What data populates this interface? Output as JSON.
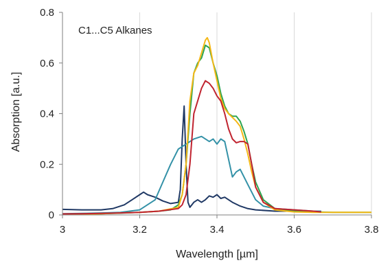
{
  "chart_data": {
    "type": "line",
    "title": "",
    "xlabel": "Wavelength [µm]",
    "ylabel": "Absorption [a.u.]",
    "xlim": [
      3.0,
      3.8
    ],
    "ylim": [
      0,
      0.8
    ],
    "xticks": [
      3.0,
      3.2,
      3.4,
      3.6,
      3.8
    ],
    "xtick_labels": [
      "3",
      "3.2",
      "3.4",
      "3.6",
      "3.8"
    ],
    "yticks": [
      0,
      0.2,
      0.4,
      0.6,
      0.8
    ],
    "ytick_labels": [
      "0",
      "0.2",
      "0.4",
      "0.6",
      "0.8"
    ],
    "grid": "vertical",
    "legend": "none",
    "annotation": "C1...C5 Alkanes",
    "series": [
      {
        "color": "#1f3864",
        "points": [
          [
            3.0,
            0.022
          ],
          [
            3.05,
            0.02
          ],
          [
            3.1,
            0.02
          ],
          [
            3.13,
            0.025
          ],
          [
            3.16,
            0.04
          ],
          [
            3.18,
            0.06
          ],
          [
            3.2,
            0.08
          ],
          [
            3.21,
            0.09
          ],
          [
            3.22,
            0.08
          ],
          [
            3.24,
            0.07
          ],
          [
            3.26,
            0.055
          ],
          [
            3.28,
            0.045
          ],
          [
            3.3,
            0.05
          ],
          [
            3.305,
            0.1
          ],
          [
            3.31,
            0.3
          ],
          [
            3.315,
            0.43
          ],
          [
            3.32,
            0.2
          ],
          [
            3.325,
            0.05
          ],
          [
            3.33,
            0.03
          ],
          [
            3.34,
            0.05
          ],
          [
            3.35,
            0.06
          ],
          [
            3.36,
            0.05
          ],
          [
            3.37,
            0.06
          ],
          [
            3.38,
            0.075
          ],
          [
            3.39,
            0.07
          ],
          [
            3.4,
            0.08
          ],
          [
            3.41,
            0.065
          ],
          [
            3.42,
            0.07
          ],
          [
            3.44,
            0.05
          ],
          [
            3.46,
            0.035
          ],
          [
            3.48,
            0.025
          ],
          [
            3.5,
            0.02
          ],
          [
            3.55,
            0.015
          ],
          [
            3.6,
            0.015
          ],
          [
            3.65,
            0.012
          ],
          [
            3.67,
            0.012
          ]
        ]
      },
      {
        "color": "#3391a7",
        "points": [
          [
            3.0,
            0.005
          ],
          [
            3.05,
            0.006
          ],
          [
            3.1,
            0.008
          ],
          [
            3.15,
            0.01
          ],
          [
            3.2,
            0.02
          ],
          [
            3.24,
            0.06
          ],
          [
            3.26,
            0.13
          ],
          [
            3.28,
            0.2
          ],
          [
            3.3,
            0.26
          ],
          [
            3.32,
            0.28
          ],
          [
            3.34,
            0.3
          ],
          [
            3.36,
            0.31
          ],
          [
            3.38,
            0.29
          ],
          [
            3.39,
            0.3
          ],
          [
            3.4,
            0.28
          ],
          [
            3.41,
            0.3
          ],
          [
            3.42,
            0.29
          ],
          [
            3.43,
            0.22
          ],
          [
            3.44,
            0.15
          ],
          [
            3.45,
            0.17
          ],
          [
            3.46,
            0.18
          ],
          [
            3.47,
            0.15
          ],
          [
            3.48,
            0.12
          ],
          [
            3.5,
            0.06
          ],
          [
            3.52,
            0.035
          ],
          [
            3.55,
            0.025
          ],
          [
            3.6,
            0.02
          ],
          [
            3.65,
            0.015
          ],
          [
            3.67,
            0.015
          ]
        ]
      },
      {
        "color": "#2ca450",
        "points": [
          [
            3.0,
            0.003
          ],
          [
            3.05,
            0.004
          ],
          [
            3.1,
            0.005
          ],
          [
            3.15,
            0.007
          ],
          [
            3.2,
            0.01
          ],
          [
            3.25,
            0.015
          ],
          [
            3.28,
            0.02
          ],
          [
            3.3,
            0.04
          ],
          [
            3.31,
            0.08
          ],
          [
            3.32,
            0.2
          ],
          [
            3.33,
            0.4
          ],
          [
            3.34,
            0.56
          ],
          [
            3.35,
            0.6
          ],
          [
            3.36,
            0.62
          ],
          [
            3.37,
            0.67
          ],
          [
            3.38,
            0.66
          ],
          [
            3.39,
            0.6
          ],
          [
            3.4,
            0.55
          ],
          [
            3.41,
            0.48
          ],
          [
            3.42,
            0.43
          ],
          [
            3.43,
            0.4
          ],
          [
            3.44,
            0.39
          ],
          [
            3.45,
            0.39
          ],
          [
            3.46,
            0.37
          ],
          [
            3.47,
            0.33
          ],
          [
            3.48,
            0.28
          ],
          [
            3.49,
            0.2
          ],
          [
            3.5,
            0.13
          ],
          [
            3.52,
            0.06
          ],
          [
            3.55,
            0.025
          ],
          [
            3.6,
            0.015
          ],
          [
            3.65,
            0.012
          ],
          [
            3.7,
            0.01
          ],
          [
            3.8,
            0.01
          ]
        ]
      },
      {
        "color": "#f5b817",
        "points": [
          [
            3.0,
            0.002
          ],
          [
            3.05,
            0.003
          ],
          [
            3.1,
            0.005
          ],
          [
            3.15,
            0.008
          ],
          [
            3.2,
            0.01
          ],
          [
            3.25,
            0.015
          ],
          [
            3.3,
            0.03
          ],
          [
            3.31,
            0.08
          ],
          [
            3.32,
            0.2
          ],
          [
            3.33,
            0.45
          ],
          [
            3.34,
            0.56
          ],
          [
            3.35,
            0.59
          ],
          [
            3.36,
            0.64
          ],
          [
            3.37,
            0.69
          ],
          [
            3.375,
            0.7
          ],
          [
            3.38,
            0.68
          ],
          [
            3.39,
            0.6
          ],
          [
            3.4,
            0.53
          ],
          [
            3.41,
            0.46
          ],
          [
            3.42,
            0.42
          ],
          [
            3.43,
            0.4
          ],
          [
            3.44,
            0.385
          ],
          [
            3.45,
            0.37
          ],
          [
            3.46,
            0.35
          ],
          [
            3.47,
            0.3
          ],
          [
            3.48,
            0.24
          ],
          [
            3.49,
            0.17
          ],
          [
            3.5,
            0.11
          ],
          [
            3.52,
            0.05
          ],
          [
            3.55,
            0.02
          ],
          [
            3.6,
            0.012
          ],
          [
            3.65,
            0.01
          ],
          [
            3.7,
            0.01
          ],
          [
            3.8,
            0.01
          ]
        ]
      },
      {
        "color": "#c0232f",
        "points": [
          [
            3.0,
            0.004
          ],
          [
            3.05,
            0.005
          ],
          [
            3.1,
            0.006
          ],
          [
            3.15,
            0.008
          ],
          [
            3.2,
            0.01
          ],
          [
            3.25,
            0.015
          ],
          [
            3.3,
            0.025
          ],
          [
            3.31,
            0.04
          ],
          [
            3.32,
            0.08
          ],
          [
            3.33,
            0.2
          ],
          [
            3.34,
            0.4
          ],
          [
            3.35,
            0.45
          ],
          [
            3.36,
            0.5
          ],
          [
            3.37,
            0.53
          ],
          [
            3.38,
            0.52
          ],
          [
            3.39,
            0.5
          ],
          [
            3.4,
            0.47
          ],
          [
            3.41,
            0.45
          ],
          [
            3.42,
            0.4
          ],
          [
            3.43,
            0.34
          ],
          [
            3.44,
            0.3
          ],
          [
            3.45,
            0.285
          ],
          [
            3.46,
            0.29
          ],
          [
            3.47,
            0.29
          ],
          [
            3.48,
            0.28
          ],
          [
            3.49,
            0.2
          ],
          [
            3.5,
            0.11
          ],
          [
            3.52,
            0.05
          ],
          [
            3.55,
            0.025
          ],
          [
            3.6,
            0.02
          ],
          [
            3.65,
            0.015
          ],
          [
            3.67,
            0.012
          ]
        ]
      }
    ]
  }
}
